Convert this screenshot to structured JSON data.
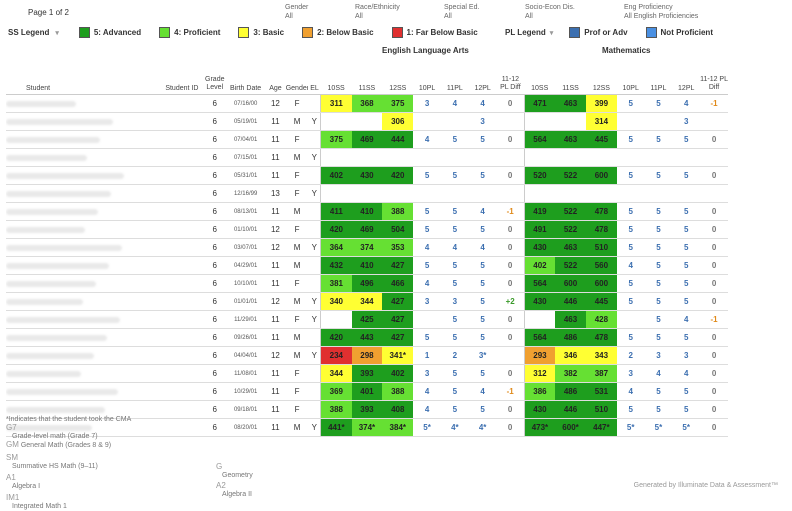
{
  "page_label": "Page 1 of 2",
  "filters": [
    {
      "label": "Gender",
      "value": "All"
    },
    {
      "label": "Race/Ethnicity",
      "value": "All"
    },
    {
      "label": "Special Ed.",
      "value": "All"
    },
    {
      "label": "Socio-Econ Dis.",
      "value": "All"
    },
    {
      "label": "Eng Proficiency",
      "value": "All English Proficiencies"
    }
  ],
  "ss_legend": {
    "title": "SS Legend",
    "items": [
      {
        "label": "5: Advanced",
        "color": "#1e9e1e"
      },
      {
        "label": "4: Proficient",
        "color": "#66e033"
      },
      {
        "label": "3: Basic",
        "color": "#ffff33"
      },
      {
        "label": "2: Below Basic",
        "color": "#f0a030"
      },
      {
        "label": "1: Far Below Basic",
        "color": "#e03030"
      }
    ]
  },
  "pl_legend": {
    "title": "PL Legend",
    "items": [
      {
        "label": "Prof or Adv",
        "color": "#3c6fb0"
      },
      {
        "label": "Not Proficient",
        "color": "#4a90e2"
      }
    ]
  },
  "sections": {
    "ela": "English Language Arts",
    "math": "Mathematics"
  },
  "headers": {
    "student": "Student",
    "student_id": "Student ID",
    "grade": "Grade Level",
    "birth": "Birth Date",
    "age": "Age",
    "gender": "Gender",
    "el": "EL",
    "ss10": "10SS",
    "ss11": "11SS",
    "ss12": "12SS",
    "pl10": "10PL",
    "pl11": "11PL",
    "pl12": "12PL",
    "diff": "11-12 PL Diff"
  },
  "colors": {
    "5": "#1e9e1e",
    "4": "#66e033",
    "3": "#ffff33",
    "2": "#f0a030",
    "1": "#e03030"
  },
  "rows": [
    {
      "g": "6",
      "b": "07/16/00",
      "a": "12",
      "s": "F",
      "el": "",
      "ela": [
        [
          "311",
          3
        ],
        [
          "368",
          4
        ],
        [
          "375",
          4
        ]
      ],
      "elapl": [
        "3",
        "4",
        "4"
      ],
      "elad": "0",
      "m": [
        [
          "471",
          5
        ],
        [
          "463",
          5
        ],
        [
          "399",
          3
        ]
      ],
      "mpl": [
        "5",
        "5",
        "4"
      ],
      "md": "-1"
    },
    {
      "g": "6",
      "b": "05/19/01",
      "a": "11",
      "s": "M",
      "el": "Y",
      "ela": [
        [
          "",
          0
        ],
        [
          "",
          0
        ],
        [
          "306",
          3
        ]
      ],
      "elapl": [
        "",
        "",
        "3"
      ],
      "elad": "",
      "m": [
        [
          "",
          0
        ],
        [
          "",
          0
        ],
        [
          "314",
          3
        ]
      ],
      "mpl": [
        "",
        "",
        "3"
      ],
      "md": ""
    },
    {
      "g": "6",
      "b": "07/04/01",
      "a": "11",
      "s": "F",
      "el": "",
      "ela": [
        [
          "375",
          4
        ],
        [
          "469",
          5
        ],
        [
          "444",
          5
        ]
      ],
      "elapl": [
        "4",
        "5",
        "5"
      ],
      "elad": "0",
      "m": [
        [
          "564",
          5
        ],
        [
          "463",
          5
        ],
        [
          "445",
          5
        ]
      ],
      "mpl": [
        "5",
        "5",
        "5"
      ],
      "md": "0"
    },
    {
      "g": "6",
      "b": "07/15/01",
      "a": "11",
      "s": "M",
      "el": "Y",
      "ela": [
        [
          "",
          0
        ],
        [
          "",
          0
        ],
        [
          "",
          0
        ]
      ],
      "elapl": [
        "",
        "",
        ""
      ],
      "elad": "",
      "m": [
        [
          "",
          0
        ],
        [
          "",
          0
        ],
        [
          "",
          0
        ]
      ],
      "mpl": [
        "",
        "",
        ""
      ],
      "md": ""
    },
    {
      "g": "6",
      "b": "05/31/01",
      "a": "11",
      "s": "F",
      "el": "",
      "ela": [
        [
          "402",
          5
        ],
        [
          "430",
          5
        ],
        [
          "420",
          5
        ]
      ],
      "elapl": [
        "5",
        "5",
        "5"
      ],
      "elad": "0",
      "m": [
        [
          "520",
          5
        ],
        [
          "522",
          5
        ],
        [
          "600",
          5
        ]
      ],
      "mpl": [
        "5",
        "5",
        "5"
      ],
      "md": "0"
    },
    {
      "g": "6",
      "b": "12/16/99",
      "a": "13",
      "s": "F",
      "el": "Y",
      "ela": [
        [
          "",
          0
        ],
        [
          "",
          0
        ],
        [
          "",
          0
        ]
      ],
      "elapl": [
        "",
        "",
        ""
      ],
      "elad": "",
      "m": [
        [
          "",
          0
        ],
        [
          "",
          0
        ],
        [
          "",
          0
        ]
      ],
      "mpl": [
        "",
        "",
        ""
      ],
      "md": ""
    },
    {
      "g": "6",
      "b": "08/13/01",
      "a": "11",
      "s": "M",
      "el": "",
      "ela": [
        [
          "411",
          5
        ],
        [
          "410",
          5
        ],
        [
          "388",
          4
        ]
      ],
      "elapl": [
        "5",
        "5",
        "4"
      ],
      "elad": "-1",
      "m": [
        [
          "419",
          5
        ],
        [
          "522",
          5
        ],
        [
          "478",
          5
        ]
      ],
      "mpl": [
        "5",
        "5",
        "5"
      ],
      "md": "0"
    },
    {
      "g": "6",
      "b": "01/10/01",
      "a": "12",
      "s": "F",
      "el": "",
      "ela": [
        [
          "420",
          5
        ],
        [
          "469",
          5
        ],
        [
          "504",
          5
        ]
      ],
      "elapl": [
        "5",
        "5",
        "5"
      ],
      "elad": "0",
      "m": [
        [
          "491",
          5
        ],
        [
          "522",
          5
        ],
        [
          "478",
          5
        ]
      ],
      "mpl": [
        "5",
        "5",
        "5"
      ],
      "md": "0"
    },
    {
      "g": "6",
      "b": "03/07/01",
      "a": "12",
      "s": "M",
      "el": "Y",
      "ela": [
        [
          "364",
          4
        ],
        [
          "374",
          4
        ],
        [
          "353",
          4
        ]
      ],
      "elapl": [
        "4",
        "4",
        "4"
      ],
      "elad": "0",
      "m": [
        [
          "430",
          5
        ],
        [
          "463",
          5
        ],
        [
          "510",
          5
        ]
      ],
      "mpl": [
        "5",
        "5",
        "5"
      ],
      "md": "0"
    },
    {
      "g": "6",
      "b": "04/29/01",
      "a": "11",
      "s": "M",
      "el": "",
      "ela": [
        [
          "432",
          5
        ],
        [
          "410",
          5
        ],
        [
          "427",
          5
        ]
      ],
      "elapl": [
        "5",
        "5",
        "5"
      ],
      "elad": "0",
      "m": [
        [
          "402",
          4
        ],
        [
          "522",
          5
        ],
        [
          "560",
          5
        ]
      ],
      "mpl": [
        "4",
        "5",
        "5"
      ],
      "md": "0"
    },
    {
      "g": "6",
      "b": "10/10/01",
      "a": "11",
      "s": "F",
      "el": "",
      "ela": [
        [
          "381",
          4
        ],
        [
          "496",
          5
        ],
        [
          "466",
          5
        ]
      ],
      "elapl": [
        "4",
        "5",
        "5"
      ],
      "elad": "0",
      "m": [
        [
          "564",
          5
        ],
        [
          "600",
          5
        ],
        [
          "600",
          5
        ]
      ],
      "mpl": [
        "5",
        "5",
        "5"
      ],
      "md": "0"
    },
    {
      "g": "6",
      "b": "01/01/01",
      "a": "12",
      "s": "M",
      "el": "Y",
      "ela": [
        [
          "340",
          3
        ],
        [
          "344",
          3
        ],
        [
          "427",
          5
        ]
      ],
      "elapl": [
        "3",
        "3",
        "5"
      ],
      "elad": "+2",
      "m": [
        [
          "430",
          5
        ],
        [
          "446",
          5
        ],
        [
          "445",
          5
        ]
      ],
      "mpl": [
        "5",
        "5",
        "5"
      ],
      "md": "0"
    },
    {
      "g": "6",
      "b": "11/29/01",
      "a": "11",
      "s": "F",
      "el": "Y",
      "ela": [
        [
          "",
          0
        ],
        [
          "425",
          5
        ],
        [
          "427",
          5
        ]
      ],
      "elapl": [
        "",
        "5",
        "5"
      ],
      "elad": "0",
      "m": [
        [
          "",
          0
        ],
        [
          "463",
          5
        ],
        [
          "428",
          4
        ]
      ],
      "mpl": [
        "",
        "5",
        "4"
      ],
      "md": "-1"
    },
    {
      "g": "6",
      "b": "09/26/01",
      "a": "11",
      "s": "M",
      "el": "",
      "ela": [
        [
          "420",
          5
        ],
        [
          "443",
          5
        ],
        [
          "427",
          5
        ]
      ],
      "elapl": [
        "5",
        "5",
        "5"
      ],
      "elad": "0",
      "m": [
        [
          "564",
          5
        ],
        [
          "486",
          5
        ],
        [
          "478",
          5
        ]
      ],
      "mpl": [
        "5",
        "5",
        "5"
      ],
      "md": "0"
    },
    {
      "g": "6",
      "b": "04/04/01",
      "a": "12",
      "s": "M",
      "el": "Y",
      "ela": [
        [
          "234",
          1
        ],
        [
          "298",
          2
        ],
        [
          "341*",
          3
        ]
      ],
      "elapl": [
        "1",
        "2",
        "3*"
      ],
      "elad": "",
      "m": [
        [
          "293",
          2
        ],
        [
          "346",
          3
        ],
        [
          "343",
          3
        ]
      ],
      "mpl": [
        "2",
        "3",
        "3"
      ],
      "md": "0"
    },
    {
      "g": "6",
      "b": "11/08/01",
      "a": "11",
      "s": "F",
      "el": "",
      "ela": [
        [
          "344",
          3
        ],
        [
          "393",
          5
        ],
        [
          "402",
          5
        ]
      ],
      "elapl": [
        "3",
        "5",
        "5"
      ],
      "elad": "0",
      "m": [
        [
          "312",
          3
        ],
        [
          "382",
          4
        ],
        [
          "387",
          4
        ]
      ],
      "mpl": [
        "3",
        "4",
        "4"
      ],
      "md": "0"
    },
    {
      "g": "6",
      "b": "10/29/01",
      "a": "11",
      "s": "F",
      "el": "",
      "ela": [
        [
          "369",
          4
        ],
        [
          "401",
          5
        ],
        [
          "388",
          4
        ]
      ],
      "elapl": [
        "4",
        "5",
        "4"
      ],
      "elad": "-1",
      "m": [
        [
          "386",
          4
        ],
        [
          "486",
          5
        ],
        [
          "531",
          5
        ]
      ],
      "mpl": [
        "4",
        "5",
        "5"
      ],
      "md": "0"
    },
    {
      "g": "6",
      "b": "09/18/01",
      "a": "11",
      "s": "F",
      "el": "",
      "ela": [
        [
          "388",
          4
        ],
        [
          "393",
          5
        ],
        [
          "408",
          5
        ]
      ],
      "elapl": [
        "4",
        "5",
        "5"
      ],
      "elad": "0",
      "m": [
        [
          "430",
          5
        ],
        [
          "446",
          5
        ],
        [
          "510",
          5
        ]
      ],
      "mpl": [
        "5",
        "5",
        "5"
      ],
      "md": "0"
    },
    {
      "g": "6",
      "b": "08/20/01",
      "a": "11",
      "s": "M",
      "el": "Y",
      "ela": [
        [
          "441*",
          5
        ],
        [
          "374*",
          4
        ],
        [
          "384*",
          4
        ]
      ],
      "elapl": [
        "5*",
        "4*",
        "4*"
      ],
      "elad": "0",
      "m": [
        [
          "473*",
          5
        ],
        [
          "600*",
          5
        ],
        [
          "447*",
          5
        ]
      ],
      "mpl": [
        "5*",
        "5*",
        "5*"
      ],
      "md": "0"
    }
  ],
  "footnote": "*Indicates that the student took the CMA",
  "abbreviations": [
    {
      "code": "G7",
      "text": "Grade-level math (Grade 7)"
    },
    {
      "code": "GM",
      "text": "General Math (Grades 8 & 9)"
    },
    {
      "code": "SM",
      "text": "Summative HS Math (9–11)"
    },
    {
      "code": "A1",
      "text": "Algebra I"
    },
    {
      "code": "IM1",
      "text": "Integrated Math 1"
    },
    {
      "code": "G",
      "text": "Geometry"
    },
    {
      "code": "A2",
      "text": "Algebra II"
    }
  ],
  "generated_by": "Generated by Illuminate Data & Assessment™"
}
